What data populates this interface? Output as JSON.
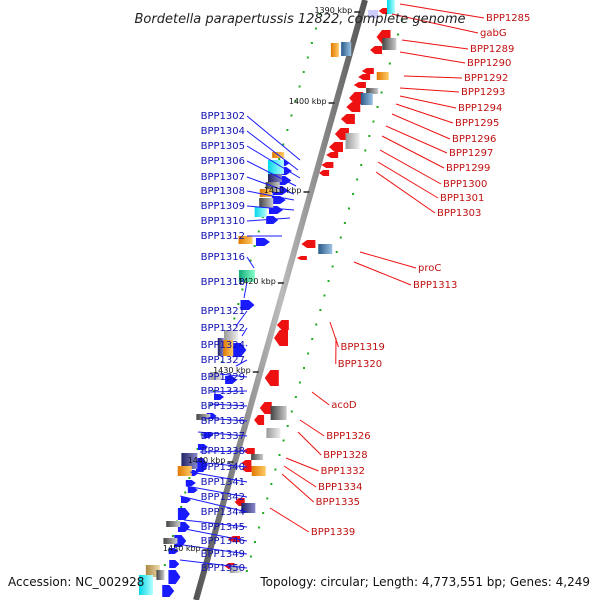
{
  "title": "Bordetella parapertussis 12822, complete genome",
  "footer": {
    "accession": "Accession: NC_002928",
    "summary": "Topology: circular; Length: 4,773,551 bp; Genes: 4,249"
  },
  "kbp_ticks": [
    "1390 kbp",
    "1400 kbp",
    "1410 kbp",
    "1420 kbp",
    "1430 kbp",
    "1440 kbp",
    "1450 kbp"
  ],
  "genes_left": [
    "BPP1302",
    "BPP1304",
    "BPP1305",
    "BPP1306",
    "BPP1307",
    "BPP1308",
    "BPP1309",
    "BPP1310",
    "BPP1312",
    "BPP1316",
    "BPP1318",
    "BPP1321",
    "BPP1322",
    "BPP1324",
    "BPP1327",
    "BPP1329",
    "BPP1331",
    "BPP1333",
    "BPP1336",
    "BPP1337",
    "BPP1338",
    "BPP1340",
    "BPP1341",
    "BPP1342",
    "BPP1344",
    "BPP1345",
    "BPP1346",
    "BPP1349",
    "BPP1350"
  ],
  "genes_right": [
    "BPP1285",
    "gabG",
    "BPP1289",
    "BPP1290",
    "BPP1292",
    "BPP1293",
    "BPP1294",
    "BPP1295",
    "BPP1296",
    "BPP1297",
    "BPP1299",
    "BPP1300",
    "BPP1301",
    "BPP1303",
    "proC",
    "BPP1313",
    "BPP1319",
    "BPP1320",
    "acoD",
    "BPP1326",
    "BPP1328",
    "BPP1332",
    "BPP1334",
    "BPP1335",
    "BPP1339"
  ],
  "colors": {
    "forward": "#1a1aff",
    "reverse": "#ee1111",
    "left_label": "#1010b0",
    "right_label": "#c01010",
    "backbone": "#888888",
    "tick": "#22aa22"
  }
}
